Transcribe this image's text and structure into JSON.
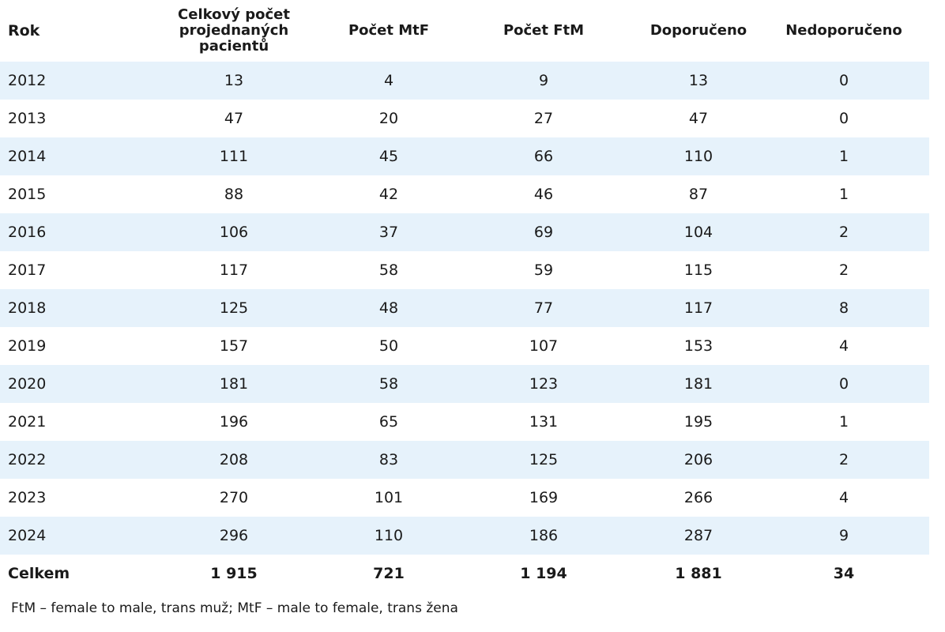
{
  "table": {
    "headers": {
      "rok": "Rok",
      "celkovy": "Celkový počet projednaných pacientů",
      "mtf": "Počet MtF",
      "ftm": "Počet FtM",
      "doporuceno": "Doporučeno",
      "nedoporuceno": "Nedoporučeno"
    },
    "rows": [
      [
        "2012",
        "13",
        "4",
        "9",
        "13",
        "0"
      ],
      [
        "2013",
        "47",
        "20",
        "27",
        "47",
        "0"
      ],
      [
        "2014",
        "111",
        "45",
        "66",
        "110",
        "1"
      ],
      [
        "2015",
        "88",
        "42",
        "46",
        "87",
        "1"
      ],
      [
        "2016",
        "106",
        "37",
        "69",
        "104",
        "2"
      ],
      [
        "2017",
        "117",
        "58",
        "59",
        "115",
        "2"
      ],
      [
        "2018",
        "125",
        "48",
        "77",
        "117",
        "8"
      ],
      [
        "2019",
        "157",
        "50",
        "107",
        "153",
        "4"
      ],
      [
        "2020",
        "181",
        "58",
        "123",
        "181",
        "0"
      ],
      [
        "2021",
        "196",
        "65",
        "131",
        "195",
        "1"
      ],
      [
        "2022",
        "208",
        "83",
        "125",
        "206",
        "2"
      ],
      [
        "2023",
        "270",
        "101",
        "169",
        "266",
        "4"
      ],
      [
        "2024",
        "296",
        "110",
        "186",
        "287",
        "9"
      ]
    ],
    "total": [
      "Celkem",
      "1 915",
      "721",
      "1 194",
      "1 881",
      "34"
    ],
    "shade_color": "#e6f2fb"
  },
  "footnote": "FtM – female to male, trans muž; MtF – male to female, trans žena"
}
